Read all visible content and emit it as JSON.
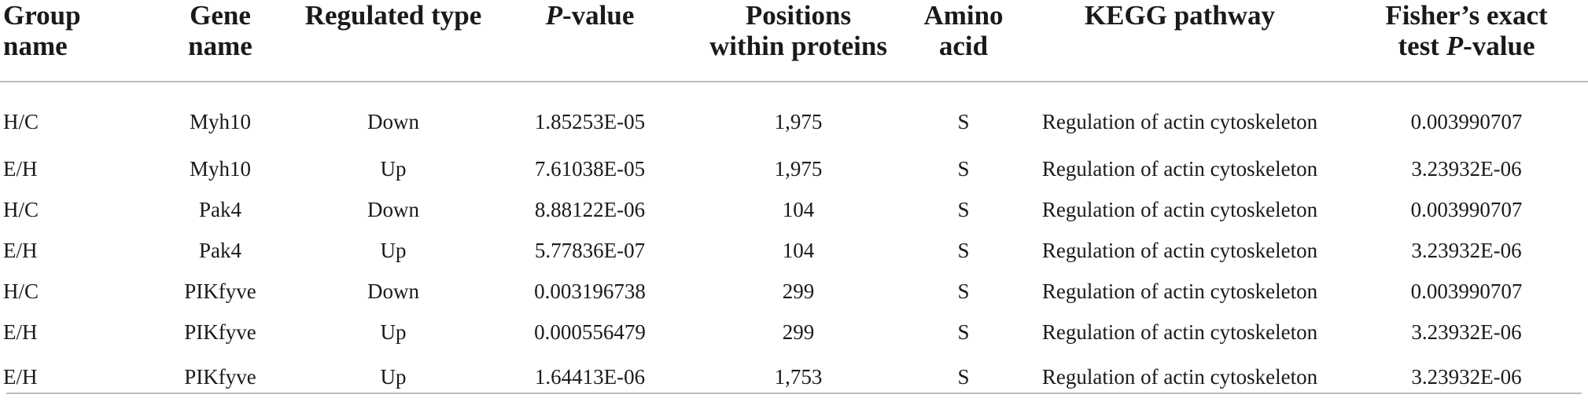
{
  "headers": {
    "group_name": [
      "Group",
      "name"
    ],
    "gene_name": [
      "Gene",
      "name"
    ],
    "regulated_type": "Regulated type",
    "p_value_italic": "P",
    "p_value_rest": "-value",
    "positions": [
      "Positions",
      "within proteins"
    ],
    "amino_acid": [
      "Amino",
      "acid"
    ],
    "kegg_pathway": "KEGG pathway",
    "fisher_line1": "Fisher’s exact",
    "fisher_line2_prefix": "test ",
    "fisher_line2_italic": "P",
    "fisher_line2_rest": "-value"
  },
  "rows": [
    {
      "group": "H/C",
      "gene": "Myh10",
      "type": "Down",
      "p": "1.85253E-05",
      "pos": "1,975",
      "aa": "S",
      "kegg": "Regulation of actin cytoskeleton",
      "fisher": "0.003990707"
    },
    {
      "group": "E/H",
      "gene": "Myh10",
      "type": "Up",
      "p": "7.61038E-05",
      "pos": "1,975",
      "aa": "S",
      "kegg": "Regulation of actin cytoskeleton",
      "fisher": "3.23932E-06"
    },
    {
      "group": "H/C",
      "gene": "Pak4",
      "type": "Down",
      "p": "8.88122E-06",
      "pos": "104",
      "aa": "S",
      "kegg": "Regulation of actin cytoskeleton",
      "fisher": "0.003990707"
    },
    {
      "group": "E/H",
      "gene": "Pak4",
      "type": "Up",
      "p": "5.77836E-07",
      "pos": "104",
      "aa": "S",
      "kegg": "Regulation of actin cytoskeleton",
      "fisher": "3.23932E-06"
    },
    {
      "group": "H/C",
      "gene": "PIKfyve",
      "type": "Down",
      "p": "0.003196738",
      "pos": "299",
      "aa": "S",
      "kegg": "Regulation of actin cytoskeleton",
      "fisher": "0.003990707"
    },
    {
      "group": "E/H",
      "gene": "PIKfyve",
      "type": "Up",
      "p": "0.000556479",
      "pos": "299",
      "aa": "S",
      "kegg": "Regulation of actin cytoskeleton",
      "fisher": "3.23932E-06"
    },
    {
      "group": "E/H",
      "gene": "PIKfyve",
      "type": "Up",
      "p": "1.64413E-06",
      "pos": "1,753",
      "aa": "S",
      "kegg": "Regulation of actin cytoskeleton",
      "fisher": "3.23932E-06"
    }
  ]
}
